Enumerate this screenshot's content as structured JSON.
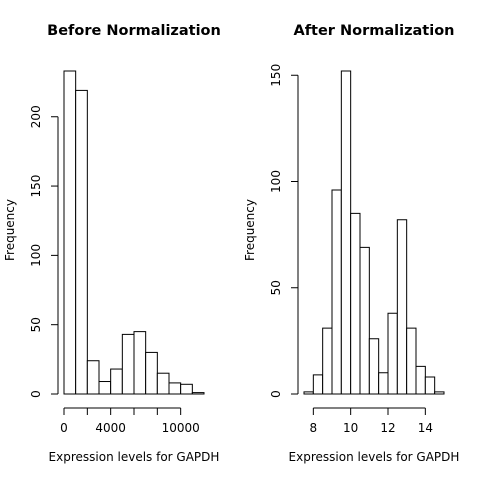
{
  "chart_data": [
    {
      "type": "bar",
      "title": "Before Normalization",
      "xlabel": "Expression levels for GAPDH",
      "ylabel": "Frequency",
      "bin_edges": [
        0,
        1000,
        2000,
        3000,
        4000,
        5000,
        6000,
        7000,
        8000,
        9000,
        10000,
        11000,
        12000
      ],
      "values": [
        233,
        219,
        24,
        9,
        18,
        43,
        45,
        30,
        15,
        8,
        7,
        1
      ],
      "xlim": [
        0,
        12000
      ],
      "ylim": [
        0,
        233
      ],
      "x_ticks": [
        0,
        2000,
        4000,
        6000,
        8000,
        10000
      ],
      "x_tick_labels": [
        "0",
        "",
        "4000",
        "",
        "",
        "10000"
      ],
      "y_ticks": [
        0,
        50,
        100,
        150,
        200
      ],
      "y_tick_labels": [
        "0",
        "50",
        "100",
        "150",
        "200"
      ],
      "grid": false,
      "legend": "none"
    },
    {
      "type": "bar",
      "title": "After Normalization",
      "xlabel": "Expression levels for GAPDH",
      "ylabel": "Frequency",
      "bin_edges": [
        7.5,
        8,
        8.5,
        9,
        9.5,
        10,
        10.5,
        11,
        11.5,
        12,
        12.5,
        13,
        13.5,
        14,
        14.5,
        15
      ],
      "values": [
        1,
        9,
        31,
        96,
        152,
        85,
        69,
        26,
        10,
        38,
        82,
        31,
        13,
        8,
        1
      ],
      "xlim": [
        7.5,
        15
      ],
      "ylim": [
        0,
        152
      ],
      "x_ticks": [
        8,
        10,
        12,
        14
      ],
      "x_tick_labels": [
        "8",
        "10",
        "12",
        "14"
      ],
      "y_ticks": [
        0,
        50,
        100,
        150
      ],
      "y_tick_labels": [
        "0",
        "50",
        "100",
        "150"
      ],
      "grid": false,
      "legend": "none"
    }
  ]
}
